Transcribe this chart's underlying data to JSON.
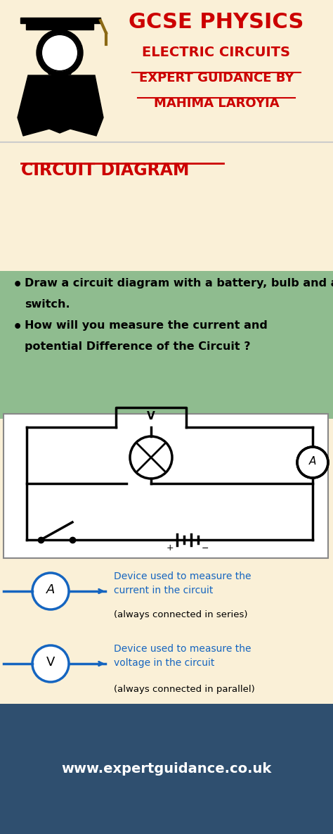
{
  "bg_cream": "#FAF0D7",
  "bg_green": "#8FBC8F",
  "bg_dark_teal": "#2F4F6F",
  "title_red": "#CC0000",
  "text_black": "#1a1a1a",
  "blue_color": "#1565C0",
  "header_title": "GCSE PHYSICS",
  "header_sub1": "ELECTRIC CIRCUITS",
  "header_sub2": "EXPERT GUIDANCE BY",
  "header_sub3": "MAHIMA LAROYIA",
  "section_title": "CIRCUIT DIAGRAM",
  "bullet1_line1": "Draw a circuit diagram with a battery, bulb and a",
  "bullet1_line2": "switch.",
  "bullet2_line1": "How will you measure the current and",
  "bullet2_line2": "potential Difference of the Circuit ?",
  "ammeter_label1": "Device used to measure the",
  "ammeter_label2": "current in the circuit",
  "ammeter_label3": "(always connected in series)",
  "voltmeter_label1": "Device used to measure the",
  "voltmeter_label2": "voltage in the circuit",
  "voltmeter_label3": "(always connected in parallel)",
  "footer_text": "www.expertguidance.co.uk"
}
